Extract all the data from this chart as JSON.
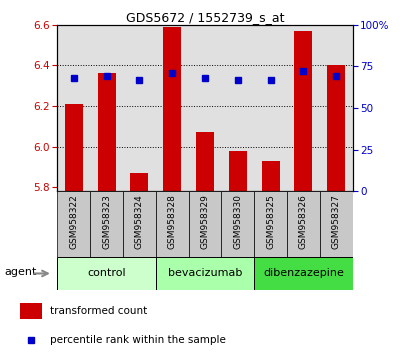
{
  "title": "GDS5672 / 1552739_s_at",
  "samples": [
    "GSM958322",
    "GSM958323",
    "GSM958324",
    "GSM958328",
    "GSM958329",
    "GSM958330",
    "GSM958325",
    "GSM958326",
    "GSM958327"
  ],
  "red_values": [
    6.21,
    6.36,
    5.87,
    6.59,
    6.07,
    5.98,
    5.93,
    6.57,
    6.4
  ],
  "blue_values": [
    6.34,
    6.35,
    6.33,
    6.36,
    6.34,
    6.33,
    6.33,
    6.37,
    6.35
  ],
  "ylim_left": [
    5.78,
    6.6
  ],
  "yticks_left": [
    5.8,
    6.0,
    6.2,
    6.4,
    6.6
  ],
  "yticks_right": [
    0,
    25,
    50,
    75,
    100
  ],
  "yticklabels_right": [
    "0",
    "25",
    "50",
    "75",
    "100%"
  ],
  "bar_color": "#cc0000",
  "dot_color": "#0000cc",
  "bar_width": 0.55,
  "groups": [
    {
      "label": "control",
      "indices": [
        0,
        1,
        2
      ],
      "color": "#ccffcc"
    },
    {
      "label": "bevacizumab",
      "indices": [
        3,
        4,
        5
      ],
      "color": "#aaffaa"
    },
    {
      "label": "dibenzazepine",
      "indices": [
        6,
        7,
        8
      ],
      "color": "#44dd44"
    }
  ],
  "agent_label": "agent",
  "legend_red": "transformed count",
  "legend_blue": "percentile rank within the sample",
  "tick_color_left": "#cc0000",
  "tick_color_right": "#0000cc",
  "xtick_bg": "#c8c8c8",
  "group_colors": [
    "#ccffcc",
    "#aaffaa",
    "#44dd44"
  ]
}
